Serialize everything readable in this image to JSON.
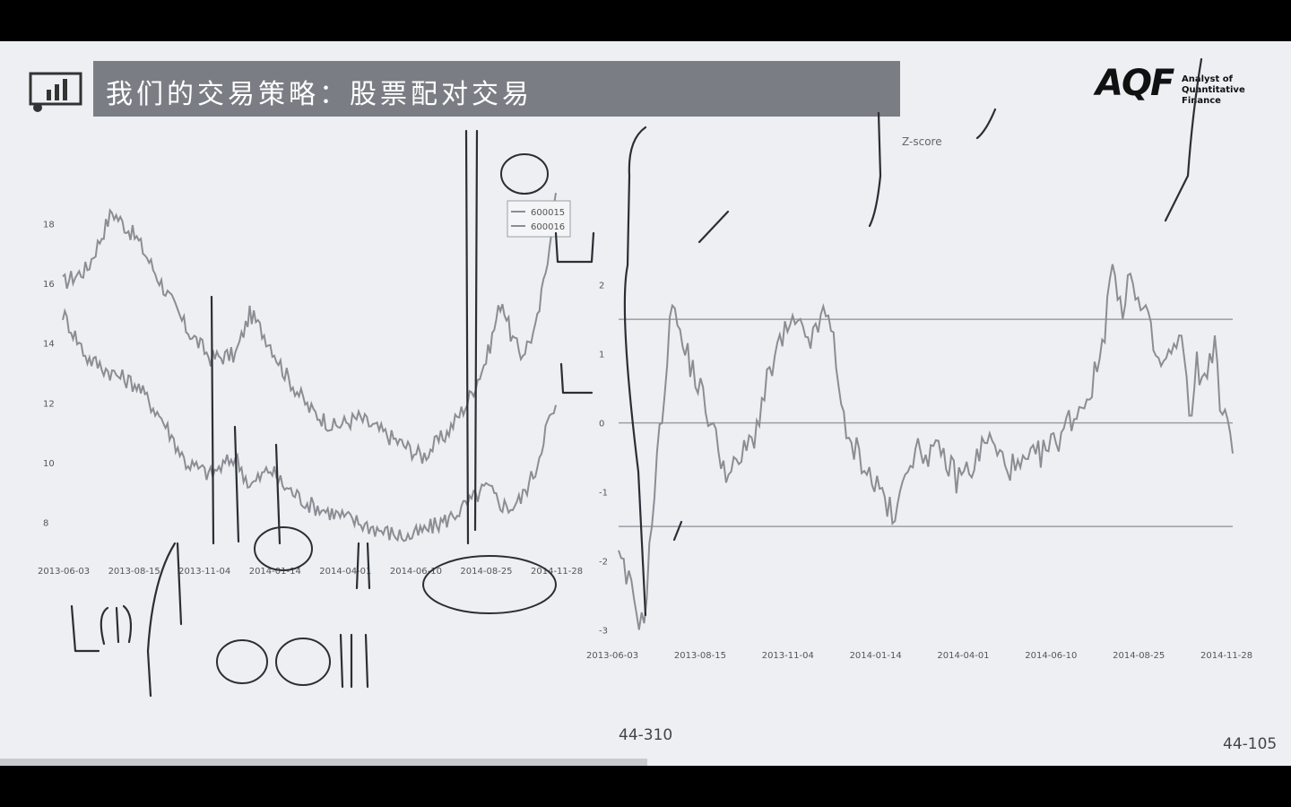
{
  "slide": {
    "title": "我们的交易策略：股票配对交易",
    "logo": {
      "mark": "AQF",
      "line1": "Analyst of",
      "line2": "Quantitative Finance"
    },
    "page_center": "44-310",
    "page_right": "44-105"
  },
  "colors": {
    "title_bar": "#7a7e84",
    "series_line": "#8a8e94",
    "threshold": "#9a9ea4",
    "ink": "#2a2f36"
  },
  "icons": [
    "presentation-chart-icon"
  ],
  "chart_data": [
    {
      "type": "line",
      "title": "",
      "x_tick_labels": [
        "2013-06-03",
        "2013-08-15",
        "2013-11-04",
        "2014-01-14",
        "2014-04-01",
        "2014-06-10",
        "2014-08-25",
        "2014-11-28"
      ],
      "y_ticks": [
        8,
        10,
        12,
        14,
        16,
        18
      ],
      "ylim": [
        7,
        19
      ],
      "legend": [
        "600015",
        "600016"
      ],
      "legend_position": "top-right",
      "xlabel": "",
      "series": [
        {
          "name": "600015",
          "anchors": [
            [
              0,
              16
            ],
            [
              0.05,
              16.5
            ],
            [
              0.1,
              18.4
            ],
            [
              0.15,
              17.5
            ],
            [
              0.2,
              16
            ],
            [
              0.25,
              14.5
            ],
            [
              0.3,
              13.5
            ],
            [
              0.35,
              13.6
            ],
            [
              0.38,
              15
            ],
            [
              0.42,
              14
            ],
            [
              0.45,
              13
            ],
            [
              0.5,
              11.8
            ],
            [
              0.55,
              11.2
            ],
            [
              0.6,
              11.5
            ],
            [
              0.65,
              11
            ],
            [
              0.7,
              10.5
            ],
            [
              0.73,
              10.2
            ],
            [
              0.78,
              11
            ],
            [
              0.82,
              12
            ],
            [
              0.86,
              13.5
            ],
            [
              0.89,
              15.5
            ],
            [
              0.91,
              14.2
            ],
            [
              0.93,
              13.6
            ],
            [
              0.96,
              14.5
            ],
            [
              0.98,
              16.5
            ],
            [
              1,
              19
            ]
          ]
        },
        {
          "name": "600016",
          "anchors": [
            [
              0,
              15
            ],
            [
              0.05,
              13.5
            ],
            [
              0.1,
              13
            ],
            [
              0.15,
              12.6
            ],
            [
              0.2,
              11.5
            ],
            [
              0.25,
              10
            ],
            [
              0.3,
              9.6
            ],
            [
              0.35,
              10.2
            ],
            [
              0.38,
              9.2
            ],
            [
              0.42,
              9.8
            ],
            [
              0.45,
              9.2
            ],
            [
              0.5,
              8.6
            ],
            [
              0.55,
              8.3
            ],
            [
              0.6,
              8.0
            ],
            [
              0.65,
              7.7
            ],
            [
              0.7,
              7.5
            ],
            [
              0.73,
              7.7
            ],
            [
              0.78,
              8.1
            ],
            [
              0.82,
              8.6
            ],
            [
              0.86,
              9.2
            ],
            [
              0.89,
              8.6
            ],
            [
              0.91,
              8.5
            ],
            [
              0.93,
              8.8
            ],
            [
              0.96,
              9.8
            ],
            [
              0.98,
              11.2
            ],
            [
              1,
              11.8
            ]
          ]
        }
      ]
    },
    {
      "type": "line",
      "title": "Z-score",
      "x_tick_labels": [
        "2013-06-03",
        "2013-08-15",
        "2013-11-04",
        "2014-01-14",
        "2014-04-01",
        "2014-06-10",
        "2014-08-25",
        "2014-11-28"
      ],
      "y_ticks": [
        -3,
        -2,
        -1,
        0,
        1,
        2
      ],
      "y_tick_labels": [
        "-3",
        "-2",
        "-1",
        "0",
        "1",
        "2"
      ],
      "ylim": [
        -3.2,
        2.8
      ],
      "thresholds": [
        1.5,
        0,
        -1.5
      ],
      "series": [
        {
          "name": "",
          "anchors": [
            [
              0,
              -2.0
            ],
            [
              0.02,
              -2.4
            ],
            [
              0.04,
              -3.0
            ],
            [
              0.06,
              -0.8
            ],
            [
              0.08,
              1.0
            ],
            [
              0.09,
              2.0
            ],
            [
              0.1,
              1.2
            ],
            [
              0.12,
              0.8
            ],
            [
              0.14,
              0.3
            ],
            [
              0.16,
              -0.3
            ],
            [
              0.18,
              -0.8
            ],
            [
              0.2,
              -0.5
            ],
            [
              0.22,
              -0.2
            ],
            [
              0.24,
              0.5
            ],
            [
              0.26,
              1.1
            ],
            [
              0.28,
              1.4
            ],
            [
              0.3,
              1.3
            ],
            [
              0.32,
              1.2
            ],
            [
              0.33,
              1.6
            ],
            [
              0.35,
              1.3
            ],
            [
              0.37,
              -0.3
            ],
            [
              0.39,
              -0.4
            ],
            [
              0.41,
              -0.8
            ],
            [
              0.43,
              -1.0
            ],
            [
              0.45,
              -1.5
            ],
            [
              0.47,
              -0.5
            ],
            [
              0.5,
              -0.4
            ],
            [
              0.53,
              -0.5
            ],
            [
              0.55,
              -0.8
            ],
            [
              0.58,
              -0.6
            ],
            [
              0.6,
              -0.2
            ],
            [
              0.62,
              -0.5
            ],
            [
              0.65,
              -0.7
            ],
            [
              0.68,
              -0.5
            ],
            [
              0.71,
              -0.3
            ],
            [
              0.73,
              0.0
            ],
            [
              0.75,
              0.2
            ],
            [
              0.77,
              0.5
            ],
            [
              0.79,
              1.2
            ],
            [
              0.8,
              2.3
            ],
            [
              0.81,
              2.0
            ],
            [
              0.82,
              1.4
            ],
            [
              0.83,
              2.4
            ],
            [
              0.84,
              1.8
            ],
            [
              0.86,
              1.5
            ],
            [
              0.88,
              0.8
            ],
            [
              0.9,
              1.0
            ],
            [
              0.92,
              1.2
            ],
            [
              0.93,
              -0.2
            ],
            [
              0.94,
              1.0
            ],
            [
              0.95,
              0.5
            ],
            [
              0.97,
              1.2
            ],
            [
              0.98,
              0.2
            ],
            [
              1,
              -0.3
            ]
          ]
        }
      ]
    }
  ]
}
